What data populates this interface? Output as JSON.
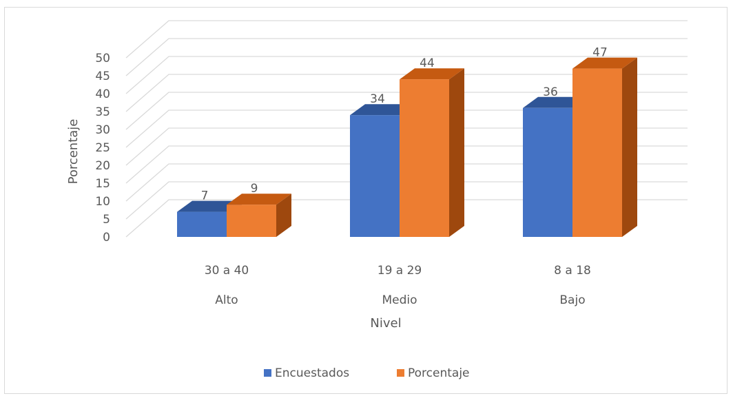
{
  "chart_data": {
    "type": "bar",
    "style": "3d-clustered-column",
    "ylabel": "Porcentaje",
    "xlabel": "Nivel",
    "ylim": [
      0,
      50
    ],
    "yticks": [
      0,
      5,
      10,
      15,
      20,
      25,
      30,
      35,
      40,
      45,
      50
    ],
    "categories": [
      {
        "range": "30 a 40",
        "level": "Alto"
      },
      {
        "range": "19 a 29",
        "level": "Medio"
      },
      {
        "range": "8 a 18",
        "level": "Bajo"
      }
    ],
    "series": [
      {
        "name": "Encuestados",
        "values": [
          7,
          34,
          36
        ],
        "color": "#4472c4",
        "top_color": "#2f5597",
        "side_color": "#2f5597"
      },
      {
        "name": "Porcentaje",
        "values": [
          9,
          44,
          47
        ],
        "color": "#ed7d31",
        "top_color": "#c55a11",
        "side_color": "#9e480e"
      }
    ],
    "grid": true,
    "legend_position": "bottom"
  }
}
